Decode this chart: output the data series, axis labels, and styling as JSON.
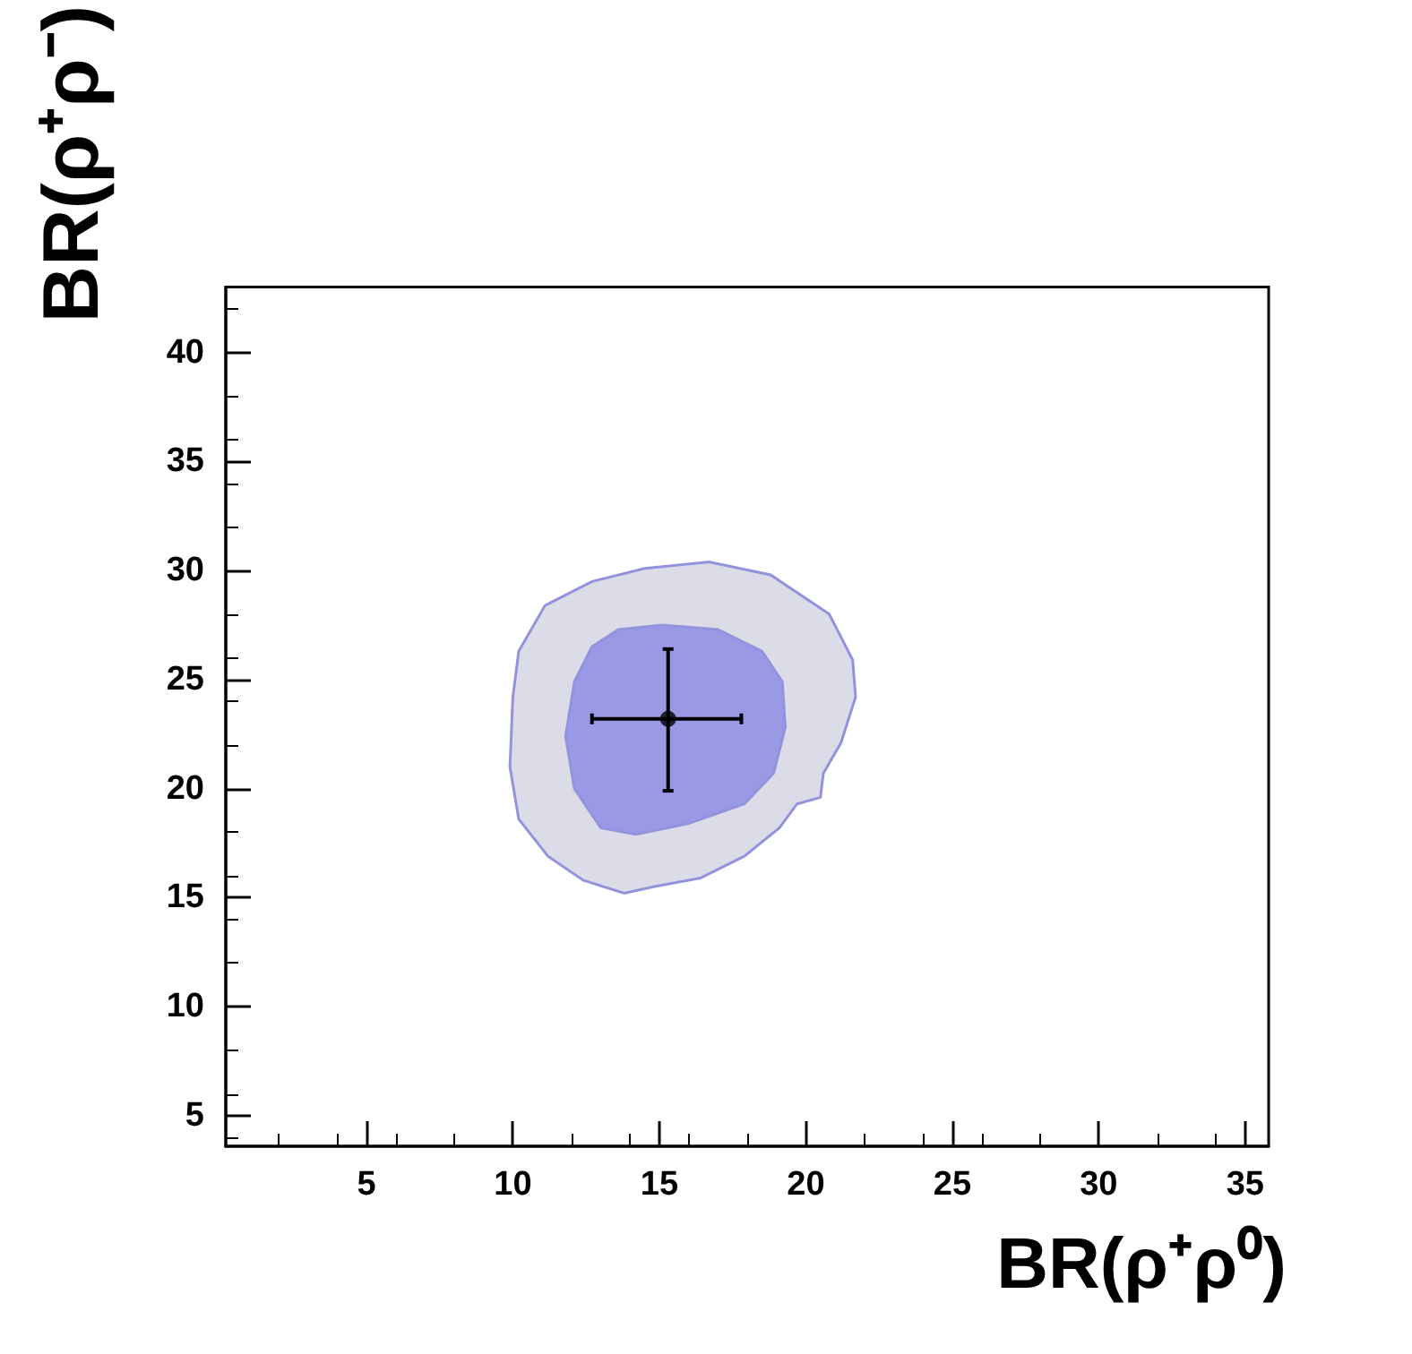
{
  "chart_data": {
    "type": "scatter",
    "xlabel": "BR(ρ⁺ρ⁰)",
    "ylabel": "BR(ρ⁺ρ⁻)",
    "xlim": [
      0.2,
      35.8
    ],
    "xticks": [
      5,
      10,
      15,
      20,
      25,
      30,
      35
    ],
    "ylim": [
      3.6,
      43
    ],
    "yticks": [
      5,
      10,
      15,
      20,
      25,
      30,
      35,
      40
    ],
    "grid": false,
    "series": [
      {
        "type": "area",
        "color": "#dcdce8",
        "x": [
          11.1,
          12.7,
          14.5,
          16.7,
          18.8,
          20.8,
          21.6,
          21.7,
          21.2,
          20.6,
          20.5,
          19.7,
          19.1,
          17.9,
          16.4,
          14.8,
          13.8,
          12.4,
          11.2,
          10.2,
          9.9,
          10.0,
          10.2
        ],
        "values": [
          28.4,
          29.5,
          30.1,
          30.4,
          29.8,
          28.0,
          25.9,
          24.2,
          22.1,
          20.7,
          19.6,
          19.3,
          18.2,
          16.9,
          15.9,
          15.5,
          15.2,
          15.8,
          16.9,
          18.6,
          21.0,
          24.2,
          26.3
        ]
      },
      {
        "type": "area",
        "color": "#9999e6",
        "x": [
          13.6,
          15.1,
          17.0,
          18.5,
          19.2,
          19.3,
          18.9,
          17.9,
          16.0,
          14.2,
          13.0,
          12.1,
          11.8,
          12.1,
          12.7
        ],
        "values": [
          27.3,
          27.5,
          27.3,
          26.3,
          24.9,
          22.8,
          20.7,
          19.3,
          18.4,
          17.9,
          18.2,
          20.0,
          22.4,
          24.9,
          26.5
        ]
      },
      {
        "color": "#000000",
        "marker": "circle",
        "x": [
          15.3
        ],
        "values": [
          23.2
        ],
        "errors": [
          [
            19.9,
            26.4
          ]
        ],
        "xerrors": [
          [
            12.7,
            17.8
          ]
        ]
      }
    ]
  }
}
